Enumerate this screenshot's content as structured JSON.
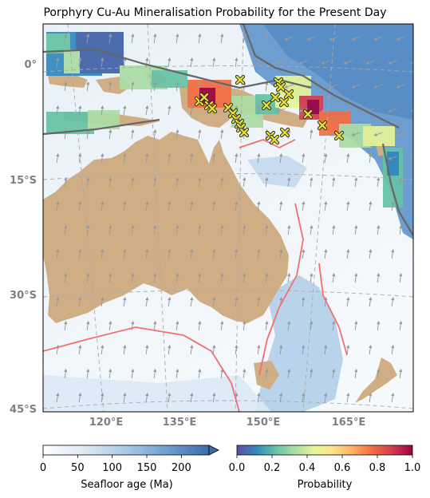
{
  "title": "Porphyry Cu-Au Mineralisation Probability for the Present Day",
  "map": {
    "lat_labels": [
      "0°",
      "15°S",
      "30°S",
      "45°S"
    ],
    "lon_labels": [
      "120°E",
      "135°E",
      "150°E",
      "165°E"
    ],
    "extent": {
      "lon": [
        111,
        178
      ],
      "lat": [
        -45,
        5
      ]
    },
    "colors": {
      "land": "#cfae85",
      "ocean_young": "#f2f6fb",
      "ocean_old": "#3f78b4",
      "subduction": "#555555",
      "ridge": "#f07070",
      "deposit_marker": "#e4df2e",
      "grid": "#aaaaaa",
      "motion_arrow": "#9a9a9a"
    },
    "deposit_icon": "x-marker-icon",
    "motion_icon": "arrow-icon"
  },
  "colorbar_age": {
    "title": "Seafloor age (Ma)",
    "ticks": [
      "0",
      "50",
      "100",
      "150",
      "200"
    ],
    "range": [
      0,
      240
    ],
    "extend": "max",
    "colors": [
      "#ffffff",
      "#dce9f5",
      "#a9c9e6",
      "#6d9ecf",
      "#3b6ca8"
    ]
  },
  "colorbar_prob": {
    "title": "Probability",
    "ticks": [
      "0.0",
      "0.2",
      "0.4",
      "0.6",
      "0.8",
      "1.0"
    ],
    "range": [
      0,
      1
    ],
    "colors": [
      "#5e4fa2",
      "#3288bd",
      "#66c2a5",
      "#abdda4",
      "#e6f598",
      "#fee08b",
      "#fdae61",
      "#f46d43",
      "#d53e4f",
      "#9e0142"
    ]
  }
}
